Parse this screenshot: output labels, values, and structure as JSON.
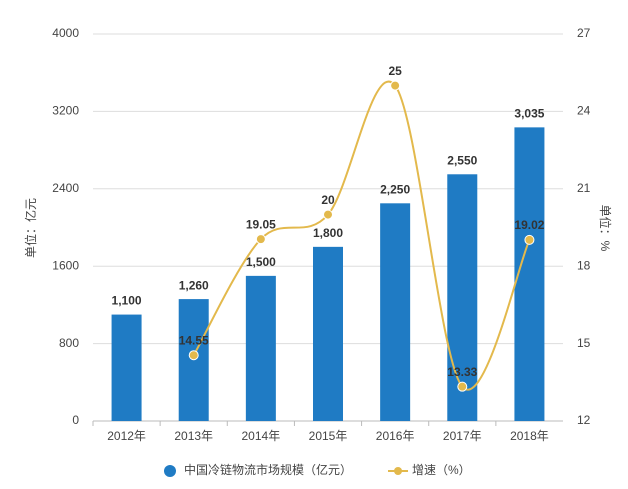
{
  "chart_data": {
    "type": "bar",
    "categories": [
      "2012年",
      "2013年",
      "2014年",
      "2015年",
      "2016年",
      "2017年",
      "2018年"
    ],
    "series": [
      {
        "name": "中国冷链物流市场规模（亿元）",
        "color": "#1f7bc4",
        "type": "bar",
        "values": [
          1100,
          1260,
          1500,
          1800,
          2250,
          2550,
          3035
        ],
        "value_labels": [
          "1,100",
          "1,260",
          "1,500",
          "1,800",
          "2,250",
          "2,550",
          "3,035"
        ]
      },
      {
        "name": "增速（%）",
        "color": "#e3b94c",
        "type": "line",
        "axis": "y2",
        "values": [
          null,
          14.55,
          19.05,
          20,
          25,
          13.33,
          19.02
        ]
      }
    ],
    "ylabel": "单位：亿元",
    "y2label": "单位：%",
    "ylim": [
      0,
      4000
    ],
    "yticks": [
      0,
      800,
      1600,
      2400,
      3200,
      4000
    ],
    "y2lim": [
      12,
      27
    ],
    "y2ticks": [
      12,
      15,
      18,
      21,
      24,
      27
    ],
    "grid": true,
    "legend": "bottom"
  }
}
